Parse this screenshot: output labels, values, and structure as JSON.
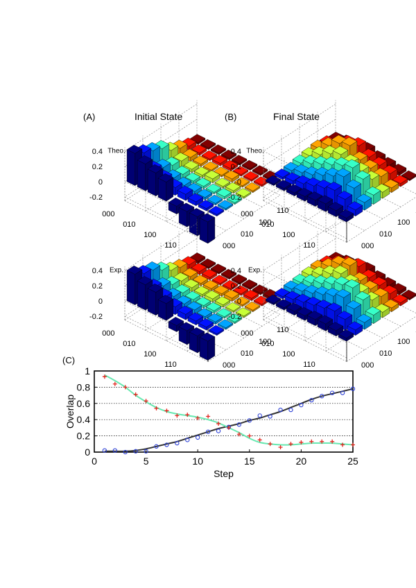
{
  "figure": {
    "panel_a": {
      "label": "(A)",
      "title": "Initial State"
    },
    "panel_b": {
      "label": "(B)",
      "title": "Final State"
    },
    "panel_c": {
      "label": "(C)"
    },
    "row_labels": {
      "theory": "Theo.",
      "experiment": "Exp."
    }
  },
  "chart_data": [
    {
      "id": "initial-theory",
      "type": "bar3d",
      "title": "Initial State",
      "row_label": "Theo.",
      "z_ticks": [
        "0.4",
        "0.2",
        "0",
        "-0.2"
      ],
      "zlim": [
        -0.25,
        0.45
      ],
      "basis_tick_labels": [
        "000",
        "010",
        "100",
        "110"
      ],
      "matrix": [
        [
          0.42,
          0.35,
          0.3,
          0.25,
          0.15,
          0.1,
          0.05,
          0.02
        ],
        [
          0.35,
          0.2,
          0.15,
          0.1,
          0.08,
          0.05,
          0.03,
          0.02
        ],
        [
          0.3,
          0.15,
          0.08,
          0.05,
          0.04,
          0.03,
          0.02,
          0.02
        ],
        [
          0.25,
          0.1,
          0.05,
          0.03,
          0.03,
          0.02,
          0.03,
          0.02
        ],
        [
          -0.1,
          0.08,
          0.04,
          0.03,
          0.05,
          0.02,
          0.03,
          0.02
        ],
        [
          -0.2,
          0.05,
          0.03,
          0.02,
          0.02,
          0.04,
          0.02,
          0.02
        ],
        [
          -0.25,
          0.03,
          0.02,
          0.03,
          0.03,
          0.02,
          0.02,
          0.02
        ],
        [
          -0.28,
          0.02,
          0.02,
          0.02,
          0.02,
          0.02,
          0.02,
          0.02
        ]
      ]
    },
    {
      "id": "final-theory",
      "type": "bar3d",
      "title": "Final State",
      "row_label": "Theo.",
      "z_ticks": [
        "0.4",
        "0.2",
        "0",
        "-0.2"
      ],
      "zlim": [
        -0.25,
        0.45
      ],
      "basis_tick_labels": [
        "000",
        "010",
        "100",
        "110"
      ],
      "matrix": [
        [
          0.02,
          0.03,
          0.04,
          0.06,
          0.08,
          0.1,
          0.08,
          0.05
        ],
        [
          0.03,
          0.05,
          0.08,
          0.12,
          0.16,
          0.2,
          0.15,
          0.08
        ],
        [
          0.04,
          0.08,
          0.12,
          0.18,
          0.24,
          0.3,
          0.22,
          0.1
        ],
        [
          0.06,
          0.12,
          0.18,
          0.24,
          0.3,
          0.34,
          0.26,
          0.12
        ],
        [
          0.08,
          0.16,
          0.24,
          0.3,
          0.26,
          0.22,
          0.18,
          0.08
        ],
        [
          0.1,
          0.2,
          0.3,
          0.34,
          0.22,
          0.18,
          0.14,
          0.06
        ],
        [
          0.08,
          0.15,
          0.22,
          0.26,
          0.18,
          0.14,
          0.1,
          0.04
        ],
        [
          0.05,
          0.08,
          0.1,
          0.12,
          0.08,
          0.06,
          0.04,
          0.02
        ]
      ]
    },
    {
      "id": "initial-experiment",
      "type": "bar3d",
      "title": "Initial State",
      "row_label": "Exp.",
      "z_ticks": [
        "0.4",
        "0.2",
        "0",
        "-0.2"
      ],
      "zlim": [
        -0.25,
        0.45
      ],
      "basis_tick_labels": [
        "000",
        "010",
        "100",
        "110"
      ],
      "matrix": [
        [
          0.4,
          0.33,
          0.3,
          0.22,
          0.14,
          0.1,
          0.06,
          0.03
        ],
        [
          0.33,
          0.22,
          0.16,
          0.1,
          0.07,
          0.05,
          0.04,
          0.02
        ],
        [
          0.3,
          0.16,
          0.09,
          0.06,
          0.05,
          0.03,
          0.03,
          0.02
        ],
        [
          0.22,
          0.1,
          0.06,
          0.04,
          0.03,
          0.03,
          0.02,
          0.02
        ],
        [
          -0.08,
          0.07,
          0.05,
          0.03,
          0.04,
          0.03,
          0.02,
          0.02
        ],
        [
          -0.18,
          0.05,
          0.03,
          0.03,
          0.03,
          0.04,
          0.02,
          0.02
        ],
        [
          -0.22,
          0.04,
          0.03,
          0.02,
          0.02,
          0.02,
          0.03,
          0.02
        ],
        [
          -0.25,
          0.02,
          0.02,
          0.02,
          0.02,
          0.02,
          0.02,
          0.03
        ]
      ]
    },
    {
      "id": "final-experiment",
      "type": "bar3d",
      "title": "Final State",
      "row_label": "Exp.",
      "z_ticks": [
        "0.4",
        "0.2",
        "0",
        "-0.2"
      ],
      "zlim": [
        -0.25,
        0.45
      ],
      "basis_tick_labels": [
        "000",
        "010",
        "100",
        "110"
      ],
      "matrix": [
        [
          0.02,
          0.03,
          0.05,
          0.06,
          0.08,
          0.09,
          0.07,
          0.04
        ],
        [
          0.03,
          0.06,
          0.09,
          0.12,
          0.15,
          0.18,
          0.14,
          0.07
        ],
        [
          0.05,
          0.09,
          0.13,
          0.18,
          0.23,
          0.28,
          0.2,
          0.09
        ],
        [
          0.06,
          0.12,
          0.18,
          0.24,
          0.3,
          0.33,
          0.24,
          0.11
        ],
        [
          0.08,
          0.15,
          0.23,
          0.3,
          0.25,
          0.2,
          0.16,
          0.07
        ],
        [
          0.09,
          0.18,
          0.28,
          0.33,
          0.2,
          0.16,
          0.13,
          0.05
        ],
        [
          0.07,
          0.14,
          0.2,
          0.24,
          0.16,
          0.13,
          0.09,
          0.04
        ],
        [
          0.04,
          0.07,
          0.09,
          0.11,
          0.07,
          0.05,
          0.04,
          0.02
        ]
      ]
    },
    {
      "id": "overlap",
      "type": "line",
      "xlabel": "Step",
      "ylabel": "Overlap",
      "xlim": [
        0,
        25
      ],
      "ylim": [
        0,
        1
      ],
      "x_ticks": [
        0,
        5,
        10,
        15,
        20,
        25
      ],
      "y_ticks": [
        0,
        0.2,
        0.4,
        0.6,
        0.8,
        1
      ],
      "grid": "horizontal-dotted",
      "series": [
        {
          "name": "overlap-with-final-theory",
          "style": "line",
          "color": "#333333",
          "x": [
            1,
            2,
            3,
            4,
            5,
            6,
            7,
            8,
            9,
            10,
            11,
            12,
            13,
            14,
            15,
            16,
            17,
            18,
            19,
            20,
            21,
            22,
            23,
            24,
            25
          ],
          "values": [
            0.01,
            0.01,
            0.01,
            0.02,
            0.04,
            0.07,
            0.1,
            0.13,
            0.17,
            0.21,
            0.25,
            0.29,
            0.32,
            0.35,
            0.39,
            0.42,
            0.46,
            0.5,
            0.55,
            0.6,
            0.65,
            0.69,
            0.72,
            0.75,
            0.78
          ]
        },
        {
          "name": "overlap-with-initial-theory",
          "style": "line",
          "color": "#66e8b0",
          "x": [
            1,
            2,
            3,
            4,
            5,
            6,
            7,
            8,
            9,
            10,
            11,
            12,
            13,
            14,
            15,
            16,
            17,
            18,
            19,
            20,
            21,
            22,
            23,
            24,
            25
          ],
          "values": [
            0.95,
            0.88,
            0.8,
            0.7,
            0.62,
            0.55,
            0.5,
            0.47,
            0.45,
            0.43,
            0.4,
            0.36,
            0.3,
            0.24,
            0.17,
            0.12,
            0.1,
            0.09,
            0.09,
            0.1,
            0.11,
            0.11,
            0.11,
            0.1,
            0.09
          ]
        },
        {
          "name": "overlap-with-final-experiment",
          "style": "marker-circle",
          "color": "#2a3ed6",
          "x": [
            1,
            2,
            3,
            4,
            5,
            6,
            7,
            8,
            9,
            10,
            11,
            12,
            13,
            14,
            15,
            16,
            17,
            18,
            19,
            20,
            21,
            22,
            23,
            24,
            25
          ],
          "values": [
            0.02,
            0.02,
            0.0,
            0.01,
            0.01,
            0.07,
            0.09,
            0.11,
            0.15,
            0.18,
            0.25,
            0.26,
            0.31,
            0.34,
            0.39,
            0.45,
            0.44,
            0.52,
            0.52,
            0.58,
            0.64,
            0.69,
            0.73,
            0.73,
            0.78
          ]
        },
        {
          "name": "overlap-with-initial-experiment",
          "style": "marker-plus",
          "color": "#e0221a",
          "x": [
            1,
            2,
            3,
            4,
            5,
            6,
            7,
            8,
            9,
            10,
            11,
            12,
            13,
            14,
            15,
            16,
            17,
            18,
            19,
            20,
            21,
            22,
            23,
            24,
            25
          ],
          "values": [
            0.93,
            0.84,
            0.8,
            0.71,
            0.63,
            0.54,
            0.51,
            0.45,
            0.46,
            0.42,
            0.44,
            0.35,
            0.3,
            0.22,
            0.2,
            0.15,
            0.1,
            0.06,
            0.1,
            0.12,
            0.13,
            0.13,
            0.13,
            0.09,
            0.09
          ]
        }
      ]
    }
  ]
}
